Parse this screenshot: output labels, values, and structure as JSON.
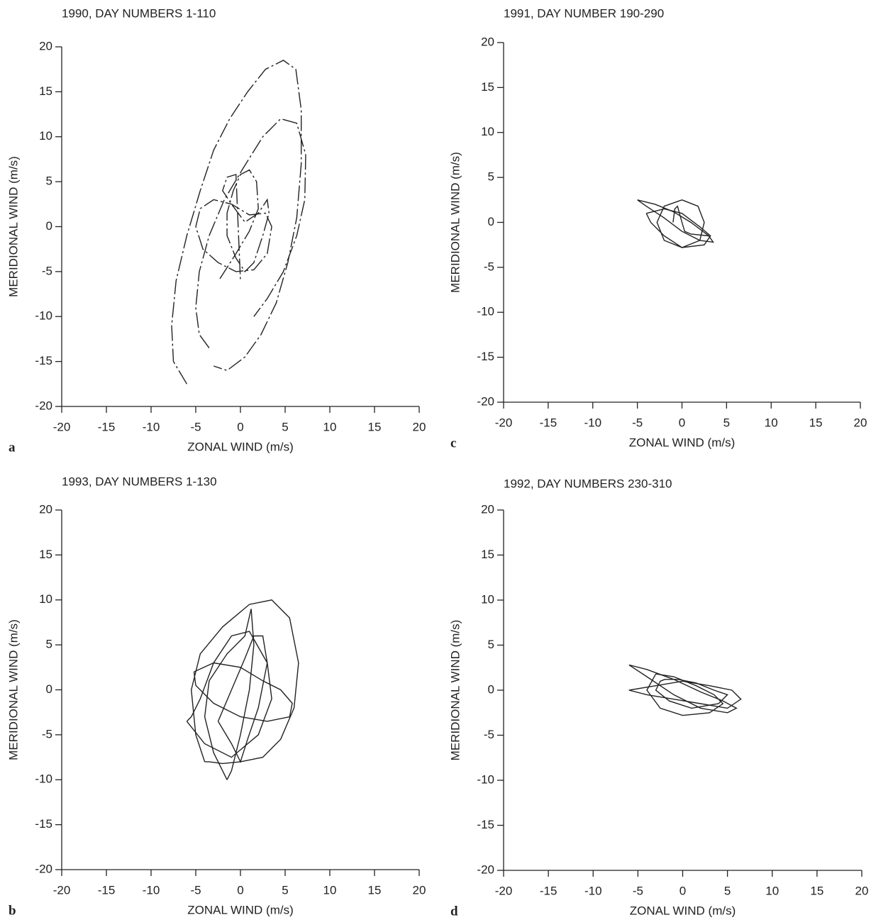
{
  "chart_data": [
    {
      "type": "line",
      "panel_label": "a",
      "title": "1990, DAY NUMBERS 1-110",
      "xlabel": "ZONAL WIND (m/s)",
      "ylabel": "MERIDIONAL WIND (m/s)",
      "xlim": [
        -20,
        20
      ],
      "ylim": [
        -20,
        20
      ],
      "xticks": [
        -20,
        -15,
        -10,
        -5,
        0,
        5,
        10,
        15,
        20
      ],
      "yticks": [
        -20,
        -15,
        -10,
        -5,
        0,
        5,
        10,
        15,
        20
      ],
      "color": "#222222",
      "line_style": "dashed",
      "series": [
        {
          "x": [
            -6,
            -7.5,
            -7.7,
            -7.2,
            -6,
            -4.5,
            -3,
            -1.2,
            0.8,
            2.8,
            4.8,
            6.2,
            6.8,
            6.8,
            6.3,
            5.3,
            4,
            2.3,
            0.5,
            -1.5,
            -3
          ],
          "values": [
            -17.5,
            -15,
            -11,
            -6,
            -1,
            4,
            8.5,
            12,
            15,
            17.5,
            18.5,
            17.5,
            13,
            7,
            1,
            -4,
            -8.5,
            -12,
            -14.5,
            -16,
            -15.5
          ]
        },
        {
          "x": [
            -3.5,
            -4.6,
            -5,
            -4.6,
            -3.5,
            -1.8,
            0.3,
            2.5,
            4.5,
            6.3,
            7.3,
            7.2,
            6.3,
            4.8,
            3,
            1.5
          ],
          "values": [
            -13.5,
            -12,
            -9,
            -5,
            -1,
            3,
            6.5,
            10,
            12,
            11.5,
            8,
            3,
            -1,
            -5,
            -8,
            -10
          ]
        },
        {
          "x": [
            -5,
            -4.5,
            -3,
            -1,
            1,
            2.8,
            3.5,
            3,
            1.5,
            -0.5,
            -2.5,
            -4.2,
            -5
          ],
          "values": [
            0,
            2,
            3,
            2.5,
            1.3,
            1.5,
            0,
            -3,
            -4.8,
            -5,
            -4,
            -2.5,
            0
          ]
        },
        {
          "x": [
            -2.3,
            -0.5,
            1,
            2,
            1.8,
            1,
            0,
            -0.8,
            -1.5,
            -1.5,
            -0.5,
            0.5,
            1.5,
            2.5,
            3.2,
            3,
            2,
            0.5,
            -1,
            -2,
            -1.5,
            -0.5,
            0
          ],
          "values": [
            -5.8,
            -3,
            -0.5,
            2,
            5,
            6.3,
            5.8,
            4,
            1.5,
            -1,
            -3.5,
            -5,
            -4,
            -1,
            1.5,
            3,
            1.5,
            0.5,
            2.5,
            4,
            5.5,
            5.8,
            -6
          ]
        }
      ]
    },
    {
      "type": "line",
      "panel_label": "c",
      "title": "1991, DAY NUMBER 190-290",
      "xlabel": "ZONAL WIND (m/s)",
      "ylabel": "MERIDIONAL WIND (m/s)",
      "xlim": [
        -20,
        20
      ],
      "ylim": [
        -20,
        20
      ],
      "xticks": [
        -20,
        -15,
        -10,
        -5,
        0,
        5,
        10,
        15,
        20
      ],
      "yticks": [
        -20,
        -15,
        -10,
        -5,
        0,
        5,
        10,
        15,
        20
      ],
      "color": "#222222",
      "series": [
        {
          "x": [
            -5,
            -3,
            -1,
            1,
            3,
            3.5,
            2,
            0,
            -2,
            -4,
            -5
          ],
          "values": [
            2.5,
            2,
            1.2,
            0,
            -1.5,
            -2.2,
            -2,
            -1,
            0.5,
            1.8,
            2.5
          ]
        },
        {
          "x": [
            0,
            1.8,
            2.5,
            2,
            0,
            -2,
            -2.8,
            -2,
            0
          ],
          "values": [
            2.5,
            1.8,
            0,
            -2,
            -2.8,
            -2,
            0,
            1.8,
            2.5
          ]
        },
        {
          "x": [
            -4,
            -2,
            0,
            2,
            3.2,
            2.5,
            0,
            -2,
            -3.5,
            -4
          ],
          "values": [
            1,
            1.5,
            1,
            -0.5,
            -1.5,
            -2.5,
            -2.8,
            -1.5,
            0,
            1
          ]
        },
        {
          "x": [
            -1,
            -0.8,
            -0.5,
            0,
            0.3,
            1,
            3
          ],
          "values": [
            0,
            1.5,
            1.8,
            0,
            -1,
            -1.3,
            -1.5
          ]
        }
      ]
    },
    {
      "type": "line",
      "panel_label": "b",
      "title": "1993, DAY NUMBERS 1-130",
      "xlabel": "ZONAL WIND (m/s)",
      "ylabel": "MERIDIONAL WIND (m/s)",
      "xlim": [
        -20,
        20
      ],
      "ylim": [
        -20,
        20
      ],
      "xticks": [
        -20,
        -15,
        -10,
        -5,
        0,
        5,
        10,
        15,
        20
      ],
      "yticks": [
        -20,
        -15,
        -10,
        -5,
        0,
        5,
        10,
        15,
        20
      ],
      "color": "#222222",
      "series": [
        {
          "x": [
            -4,
            -5,
            -5.5,
            -4.5,
            -2,
            1,
            3.5,
            5.5,
            6.5,
            6,
            4.5,
            2.5,
            0,
            -2,
            -3.5,
            -4
          ],
          "values": [
            -8,
            -5,
            0,
            4,
            7,
            9.5,
            10,
            8,
            3,
            -2,
            -5.5,
            -7.5,
            -8,
            -8.2,
            -8,
            -8
          ]
        },
        {
          "x": [
            -1.5,
            -3,
            -4,
            -3.5,
            -1.5,
            0.5,
            1.2,
            1.5,
            1,
            0,
            -1,
            -1.5
          ],
          "values": [
            -10,
            -7,
            -3,
            1,
            4,
            6,
            9,
            5,
            0,
            -5,
            -9,
            -10
          ]
        },
        {
          "x": [
            -5.2,
            -3,
            0,
            2.5,
            4.5,
            5.8,
            5.5,
            3,
            0,
            -3,
            -5,
            -5.2
          ],
          "values": [
            2,
            3,
            2.5,
            1,
            0,
            -1.5,
            -3,
            -3.5,
            -3,
            -1.5,
            0.5,
            2
          ]
        },
        {
          "x": [
            -6,
            -4,
            -1,
            2,
            3.5,
            3,
            1,
            -1,
            -3,
            -4.5,
            -5.5,
            -6
          ],
          "values": [
            -3.5,
            -6,
            -7.5,
            -5,
            -1,
            3,
            6.5,
            6,
            3,
            -1,
            -3,
            -3.5
          ]
        },
        {
          "x": [
            -2.5,
            -1,
            0.5,
            1.5,
            2.5,
            3,
            2,
            0.8,
            0,
            -1,
            -2.5
          ],
          "values": [
            -3.5,
            0,
            3.5,
            6,
            6,
            3,
            -2,
            -5.5,
            -8,
            -6,
            -3.5
          ]
        }
      ]
    },
    {
      "type": "line",
      "panel_label": "d",
      "title": "1992, DAY NUMBERS 230-310",
      "xlabel": "ZONAL WIND (m/s)",
      "ylabel": "MERIDIONAL WIND (m/s)",
      "xlim": [
        -20,
        20
      ],
      "ylim": [
        -20,
        20
      ],
      "xticks": [
        -20,
        -15,
        -10,
        -5,
        0,
        5,
        10,
        15,
        20
      ],
      "yticks": [
        -20,
        -15,
        -10,
        -5,
        0,
        5,
        10,
        15,
        20
      ],
      "color": "#222222",
      "series": [
        {
          "x": [
            -6,
            -4,
            -1,
            2,
            4.5,
            6,
            5,
            2,
            -1,
            -4,
            -6
          ],
          "values": [
            2.8,
            2.3,
            1.2,
            -0.2,
            -1.2,
            -2,
            -2.5,
            -2,
            -0.5,
            1.5,
            2.8
          ]
        },
        {
          "x": [
            -3,
            -1,
            1.5,
            3.5,
            4.5,
            3,
            0,
            -2.5,
            -4,
            -3
          ],
          "values": [
            1.8,
            1.5,
            0.5,
            -0.5,
            -1.5,
            -2.5,
            -2.8,
            -2,
            0,
            1.8
          ]
        },
        {
          "x": [
            -6,
            -3,
            0,
            3,
            5.5,
            6.5,
            5,
            2,
            -1,
            -4,
            -6
          ],
          "values": [
            0,
            0.5,
            1,
            0.5,
            0,
            -1,
            -2,
            -1.5,
            -1,
            -0.5,
            0
          ]
        },
        {
          "x": [
            -2,
            -0.5,
            1.5,
            3.5,
            5,
            4,
            1,
            -1.5,
            -3,
            -2.5,
            -2
          ],
          "values": [
            1.2,
            1.2,
            0.8,
            0,
            -0.5,
            -1.5,
            -2,
            -1.2,
            0,
            1,
            1.2
          ]
        }
      ]
    }
  ]
}
